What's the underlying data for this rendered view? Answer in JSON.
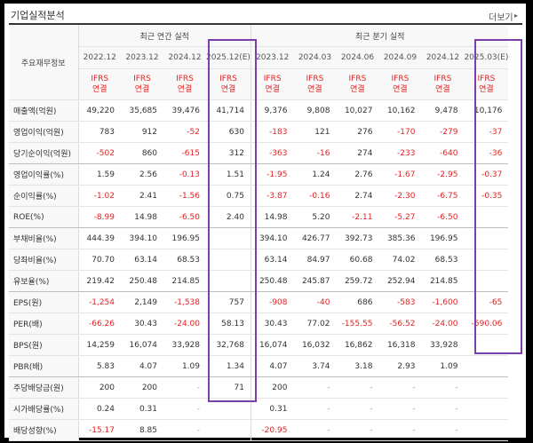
{
  "title": "기업실적분석",
  "more_label": "더보기",
  "more_icon": "chevron-right-icon",
  "header": {
    "row_header": "주요재무정보",
    "annual_group": "최근 연간 실적",
    "quarterly_group": "최근 분기 실적",
    "periods": [
      "2022.12",
      "2023.12",
      "2024.12",
      "2025.12(E)",
      "2023.12",
      "2024.03",
      "2024.06",
      "2024.09",
      "2024.12",
      "2025.03(E)"
    ],
    "types": [
      "IFRS\n연결",
      "IFRS\n연결",
      "IFRS\n연결",
      "IFRS\n연결",
      "IFRS\n연결",
      "IFRS\n연결",
      "IFRS\n연결",
      "IFRS\n연결",
      "IFRS\n연결",
      "IFRS\n연결"
    ]
  },
  "rows": [
    {
      "label": "매출액(억원)",
      "values": [
        "49,220",
        "35,685",
        "39,476",
        "41,714",
        "9,376",
        "9,808",
        "10,027",
        "10,162",
        "9,478",
        "10,176"
      ]
    },
    {
      "label": "영업이익(억원)",
      "values": [
        "783",
        "912",
        "-52",
        "630",
        "-183",
        "121",
        "276",
        "-170",
        "-279",
        "-37"
      ]
    },
    {
      "label": "당기순이익(억원)",
      "values": [
        "-502",
        "860",
        "-615",
        "312",
        "-363",
        "-16",
        "274",
        "-233",
        "-640",
        "-36"
      ]
    },
    {
      "label": "영업이익률(%)",
      "values": [
        "1.59",
        "2.56",
        "-0.13",
        "1.51",
        "-1.95",
        "1.24",
        "2.76",
        "-1.67",
        "-2.95",
        "-0.37"
      ]
    },
    {
      "label": "순이익률(%)",
      "values": [
        "-1.02",
        "2.41",
        "-1.56",
        "0.75",
        "-3.87",
        "-0.16",
        "2.74",
        "-2.30",
        "-6.75",
        "-0.35"
      ]
    },
    {
      "label": "ROE(%)",
      "values": [
        "-8.99",
        "14.98",
        "-6.50",
        "2.40",
        "14.98",
        "5.20",
        "-2.11",
        "-5.27",
        "-6.50",
        ""
      ]
    },
    {
      "label": "부채비율(%)",
      "values": [
        "444.39",
        "394.10",
        "196.95",
        "",
        "394.10",
        "426.77",
        "392.73",
        "385.36",
        "196.95",
        ""
      ]
    },
    {
      "label": "당좌비율(%)",
      "values": [
        "70.70",
        "63.14",
        "68.53",
        "",
        "63.14",
        "84.97",
        "60.68",
        "74.02",
        "68.53",
        ""
      ]
    },
    {
      "label": "유보율(%)",
      "values": [
        "219.42",
        "250.48",
        "214.85",
        "",
        "250.48",
        "245.87",
        "259.72",
        "252.94",
        "214.85",
        ""
      ]
    },
    {
      "label": "EPS(원)",
      "values": [
        "-1,254",
        "2,149",
        "-1,538",
        "757",
        "-908",
        "-40",
        "686",
        "-583",
        "-1,600",
        "-65"
      ]
    },
    {
      "label": "PER(배)",
      "values": [
        "-66.26",
        "30.43",
        "-24.00",
        "58.13",
        "30.43",
        "77.02",
        "-155.55",
        "-56.52",
        "-24.00",
        "-590.06"
      ]
    },
    {
      "label": "BPS(원)",
      "values": [
        "14,259",
        "16,074",
        "33,928",
        "32,768",
        "16,074",
        "16,032",
        "16,862",
        "16,318",
        "33,928",
        ""
      ]
    },
    {
      "label": "PBR(배)",
      "values": [
        "5.83",
        "4.07",
        "1.09",
        "1.34",
        "4.07",
        "3.74",
        "3.18",
        "2.93",
        "1.09",
        ""
      ]
    },
    {
      "label": "주당배당금(원)",
      "values": [
        "200",
        "200",
        "-",
        "71",
        "200",
        "-",
        "-",
        "-",
        "-",
        ""
      ]
    },
    {
      "label": "시가배당률(%)",
      "values": [
        "0.24",
        "0.31",
        "-",
        "",
        "0.31",
        "-",
        "-",
        "-",
        "-",
        ""
      ]
    },
    {
      "label": "배당성향(%)",
      "values": [
        "-15.17",
        "8.85",
        "-",
        "",
        "-20.95",
        "-",
        "-",
        "-",
        "-",
        ""
      ]
    }
  ],
  "colors": {
    "negative": "#e52222",
    "highlight": "#7a3fa8",
    "header_bg": "#f8f8f8"
  }
}
